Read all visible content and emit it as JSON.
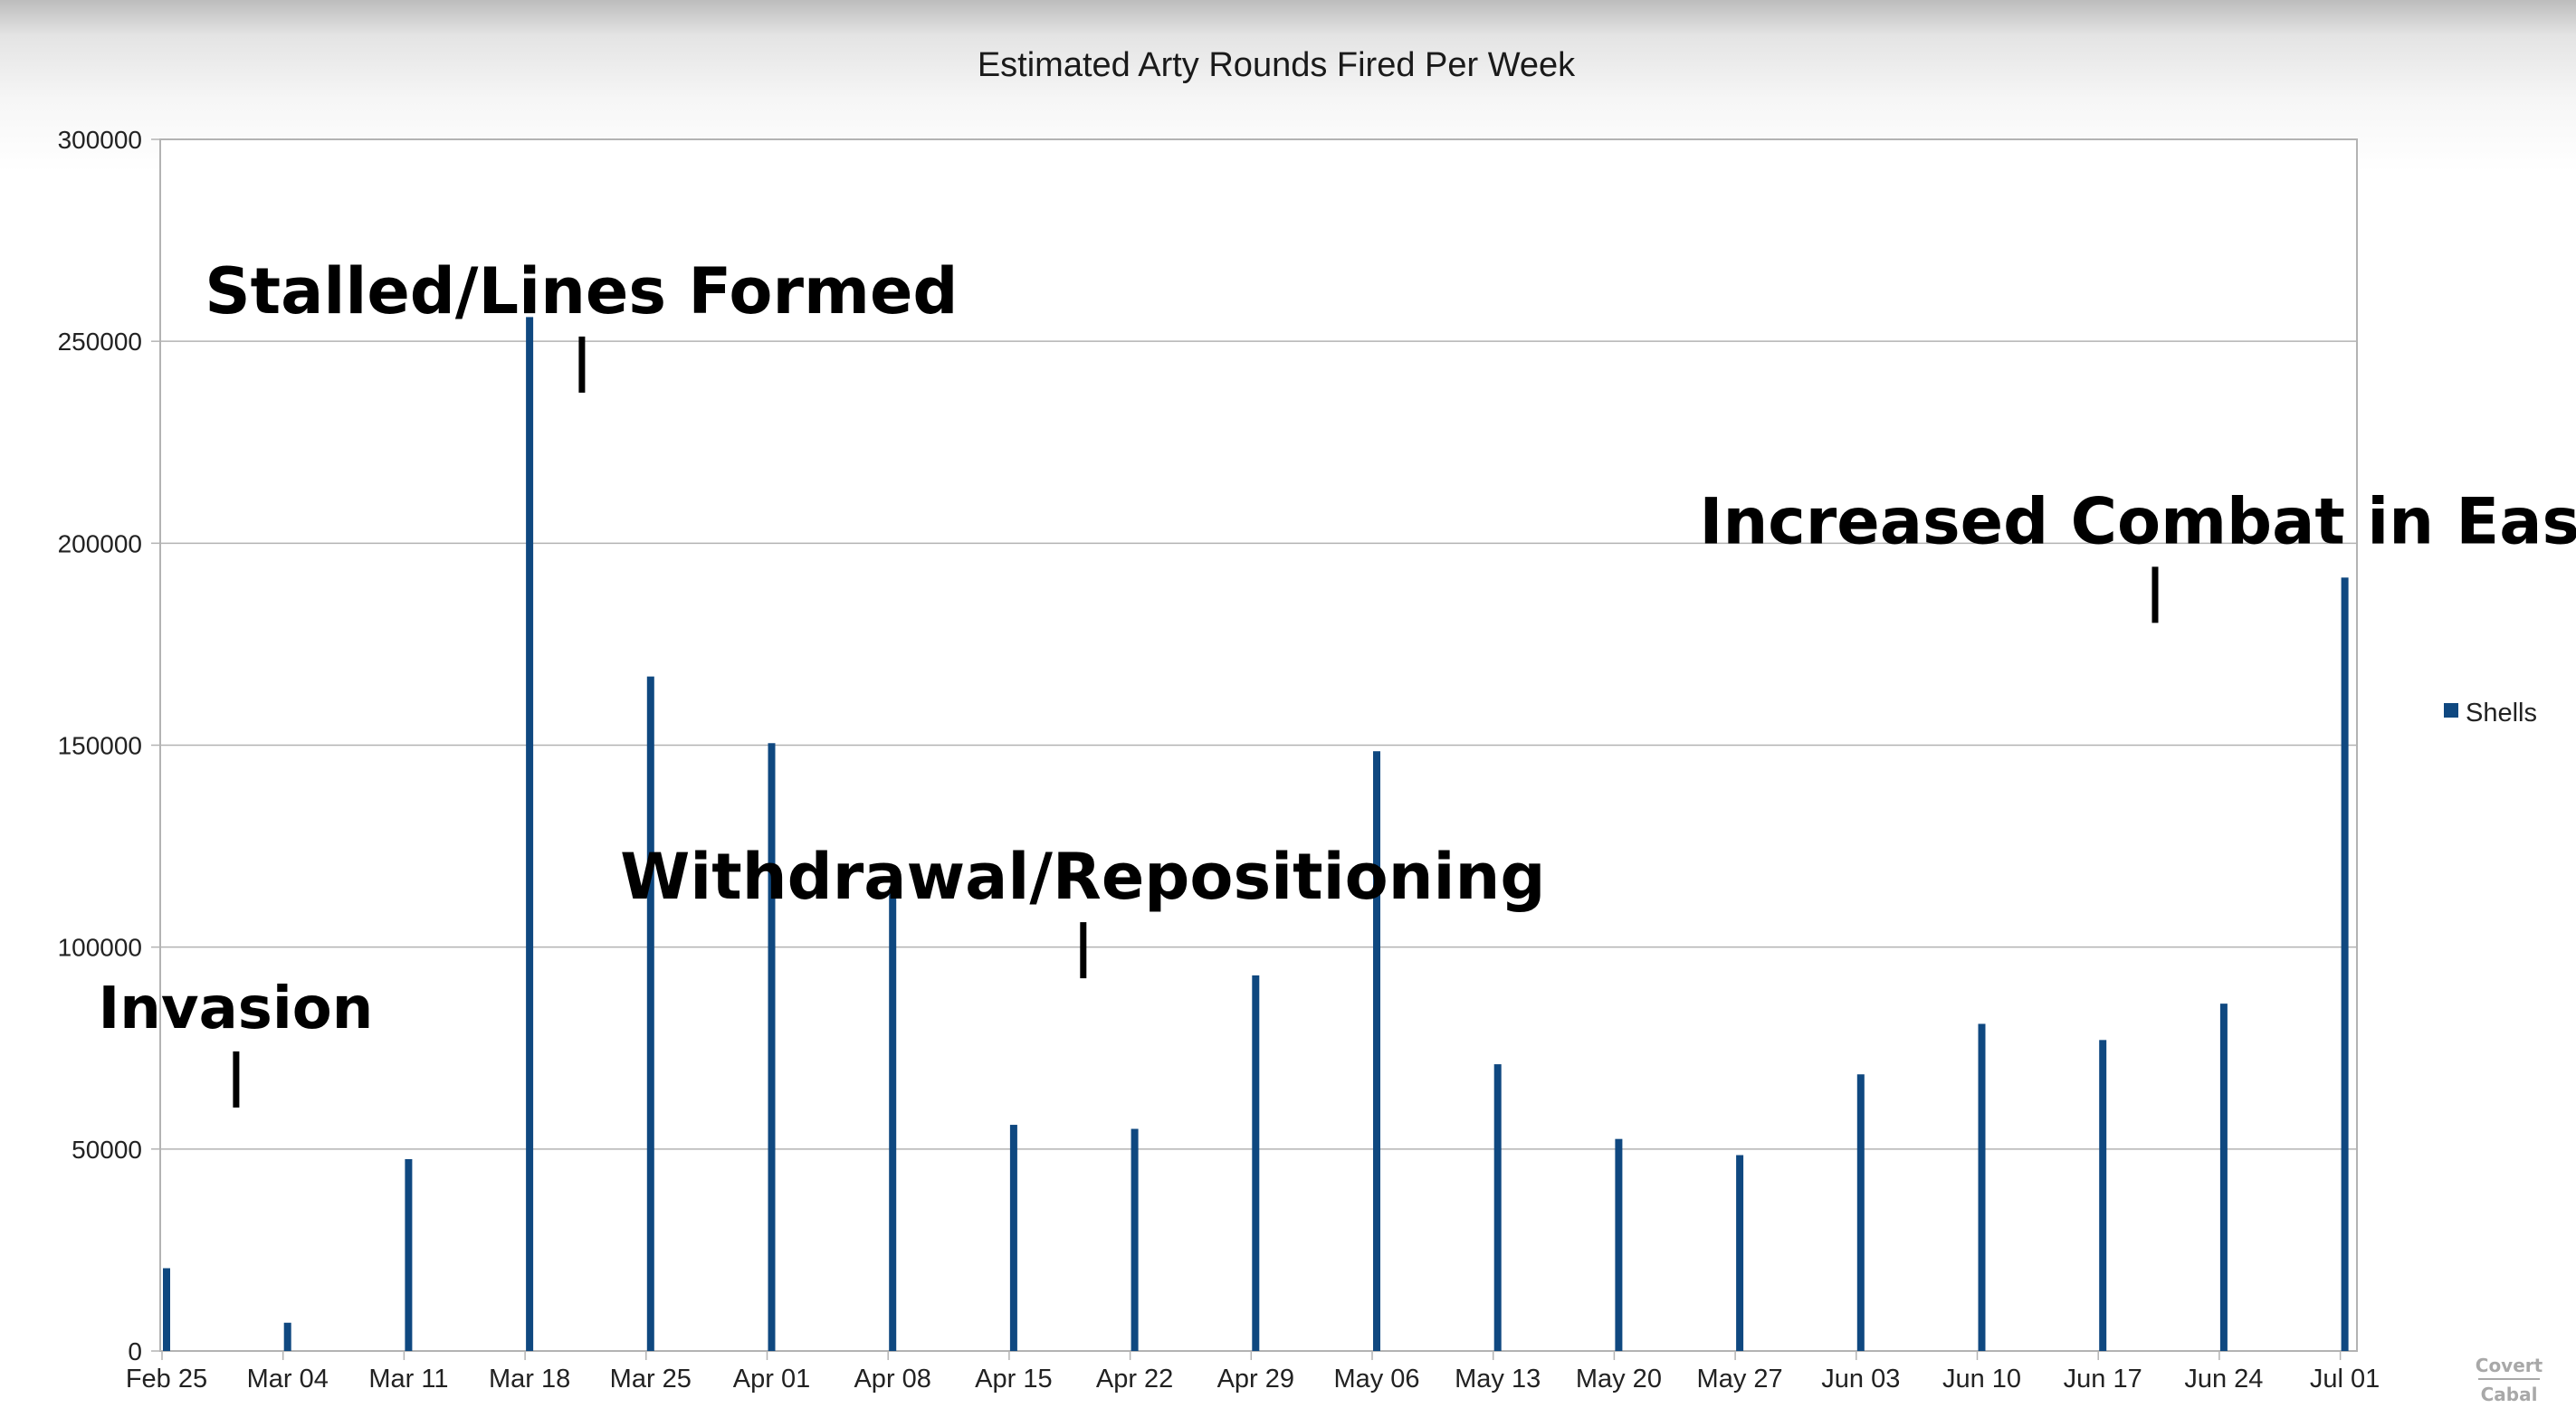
{
  "chart_data": {
    "type": "bar",
    "title": "Estimated Arty Rounds Fired Per Week",
    "xlabel": "",
    "ylabel": "",
    "ylim": [
      0,
      300000
    ],
    "yticks": [
      0,
      50000,
      100000,
      150000,
      200000,
      250000,
      300000
    ],
    "categories": [
      "Feb 25",
      "Mar 04",
      "Mar 11",
      "Mar 18",
      "Mar 25",
      "Apr 01",
      "Apr 08",
      "Apr 15",
      "Apr 22",
      "Apr 29",
      "May 06",
      "May 13",
      "May 20",
      "May 27",
      "Jun 03",
      "Jun 10",
      "Jun 17",
      "Jun 24",
      "Jul 01"
    ],
    "series": [
      {
        "name": "Shells",
        "color": "#0f4880",
        "values": [
          20500,
          7000,
          47500,
          256000,
          167000,
          150500,
          115000,
          56000,
          55000,
          93000,
          148500,
          71000,
          52500,
          48500,
          68500,
          81000,
          77000,
          86000,
          191500
        ]
      }
    ],
    "grid": true,
    "legend": "right",
    "annotations": [
      {
        "text": "Invasion",
        "x": "Feb 29",
        "y": 80000
      },
      {
        "text": "Stalled/Lines Formed",
        "x": "Mar 21",
        "y": 257000
      },
      {
        "text": "Withdrawal/Repositioning",
        "x": "Apr 19",
        "y": 112000
      },
      {
        "text": "Increased Combat in East",
        "x": "Jun 20",
        "y": 200000
      }
    ],
    "watermark": [
      "Covert",
      "Cabal"
    ]
  }
}
